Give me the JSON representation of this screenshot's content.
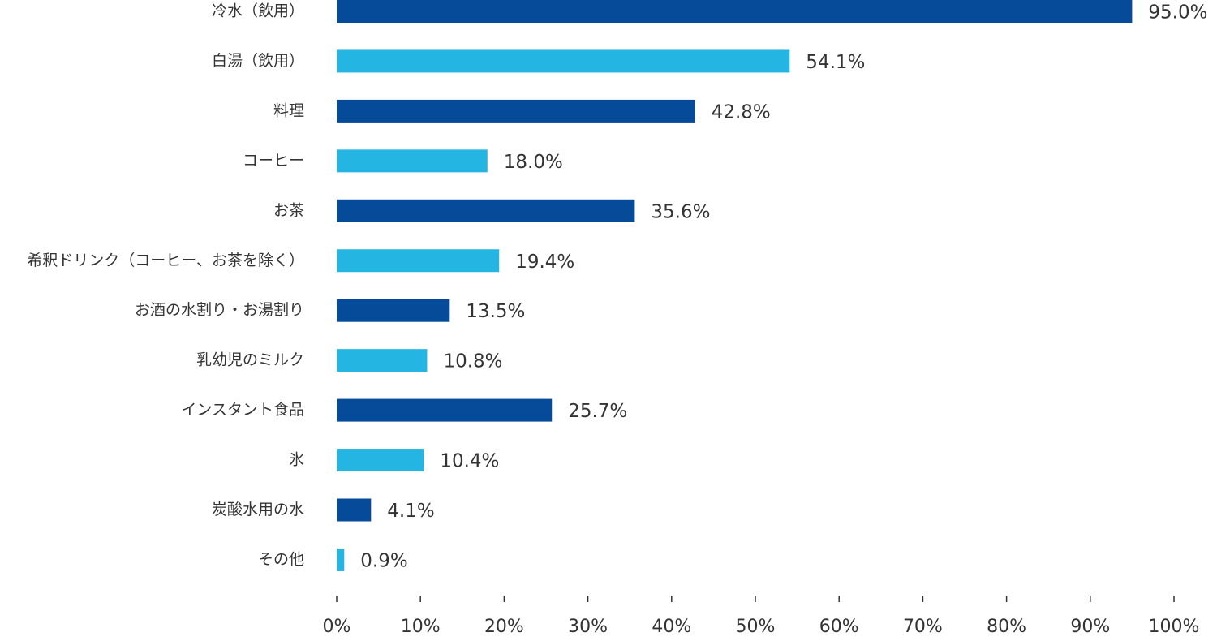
{
  "chart_data": {
    "type": "bar",
    "orientation": "horizontal",
    "categories": [
      "冷水（飲用）",
      "白湯（飲用）",
      "料理",
      "コーヒー",
      "お茶",
      "希釈ドリンク（コーヒー、お茶を除く）",
      "お酒の水割り・お湯割り",
      "乳幼児のミルク",
      "インスタント食品",
      "氷",
      "炭酸水用の水",
      "その他"
    ],
    "values": [
      95.0,
      54.1,
      42.8,
      18.0,
      35.6,
      19.4,
      13.5,
      10.8,
      25.7,
      10.4,
      4.1,
      0.9
    ],
    "value_labels": [
      "95.0%",
      "54.1%",
      "42.8%",
      "18.0%",
      "35.6%",
      "19.4%",
      "13.5%",
      "10.8%",
      "25.7%",
      "10.4%",
      "4.1%",
      "0.9%"
    ],
    "colors": [
      "#064a9a",
      "#25b5e3",
      "#064a9a",
      "#25b5e3",
      "#064a9a",
      "#25b5e3",
      "#064a9a",
      "#25b5e3",
      "#064a9a",
      "#25b5e3",
      "#064a9a",
      "#25b5e3"
    ],
    "xlim": [
      0,
      100
    ],
    "xticks": [
      {
        "value": 0,
        "label": "0%"
      },
      {
        "value": 10,
        "label": "10%"
      },
      {
        "value": 20,
        "label": "20%"
      },
      {
        "value": 30,
        "label": "30%"
      },
      {
        "value": 40,
        "label": "40%"
      },
      {
        "value": 50,
        "label": "50%"
      },
      {
        "value": 60,
        "label": "60%"
      },
      {
        "value": 70,
        "label": "70%"
      },
      {
        "value": 80,
        "label": "80%"
      },
      {
        "value": 90,
        "label": "90%"
      },
      {
        "value": 100,
        "label": "100%"
      }
    ],
    "grid": false
  }
}
